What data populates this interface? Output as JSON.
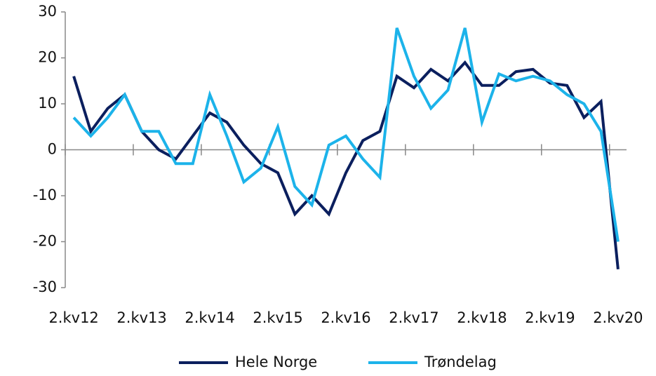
{
  "chart_data": {
    "type": "line",
    "categories": [
      "2.kv12",
      null,
      null,
      null,
      "2.kv13",
      null,
      null,
      null,
      "2.kv14",
      null,
      null,
      null,
      "2.kv15",
      null,
      null,
      null,
      "2.kv16",
      null,
      null,
      null,
      "2.kv17",
      null,
      null,
      null,
      "2.kv18",
      null,
      null,
      null,
      "2.kv19",
      null,
      null,
      null,
      "2.kv20"
    ],
    "series": [
      {
        "name": "Hele Norge",
        "color": "#0b1f5e",
        "values": [
          16,
          4,
          9,
          12,
          4,
          0,
          -2,
          3,
          8,
          6,
          1,
          -3,
          -5,
          -14,
          -10,
          -14,
          -5,
          2,
          4,
          16,
          13.5,
          17.5,
          15,
          19,
          14,
          14,
          17,
          17.5,
          14.5,
          14,
          7,
          10.5,
          -26
        ]
      },
      {
        "name": "Trøndelag",
        "color": "#1cb3ea",
        "values": [
          7,
          3,
          7,
          12,
          4,
          4,
          -3,
          -3,
          12,
          3,
          -7,
          -4,
          5,
          -8,
          -12,
          1,
          3,
          -2,
          -6,
          26.5,
          16,
          9,
          13,
          26.5,
          6,
          16.5,
          15,
          16,
          15,
          12,
          10,
          4,
          -20
        ]
      }
    ],
    "ylim": [
      -30,
      30
    ],
    "yticks": [
      -30,
      -20,
      -10,
      0,
      10,
      20,
      30
    ],
    "grid": false,
    "legend": "bottom"
  }
}
